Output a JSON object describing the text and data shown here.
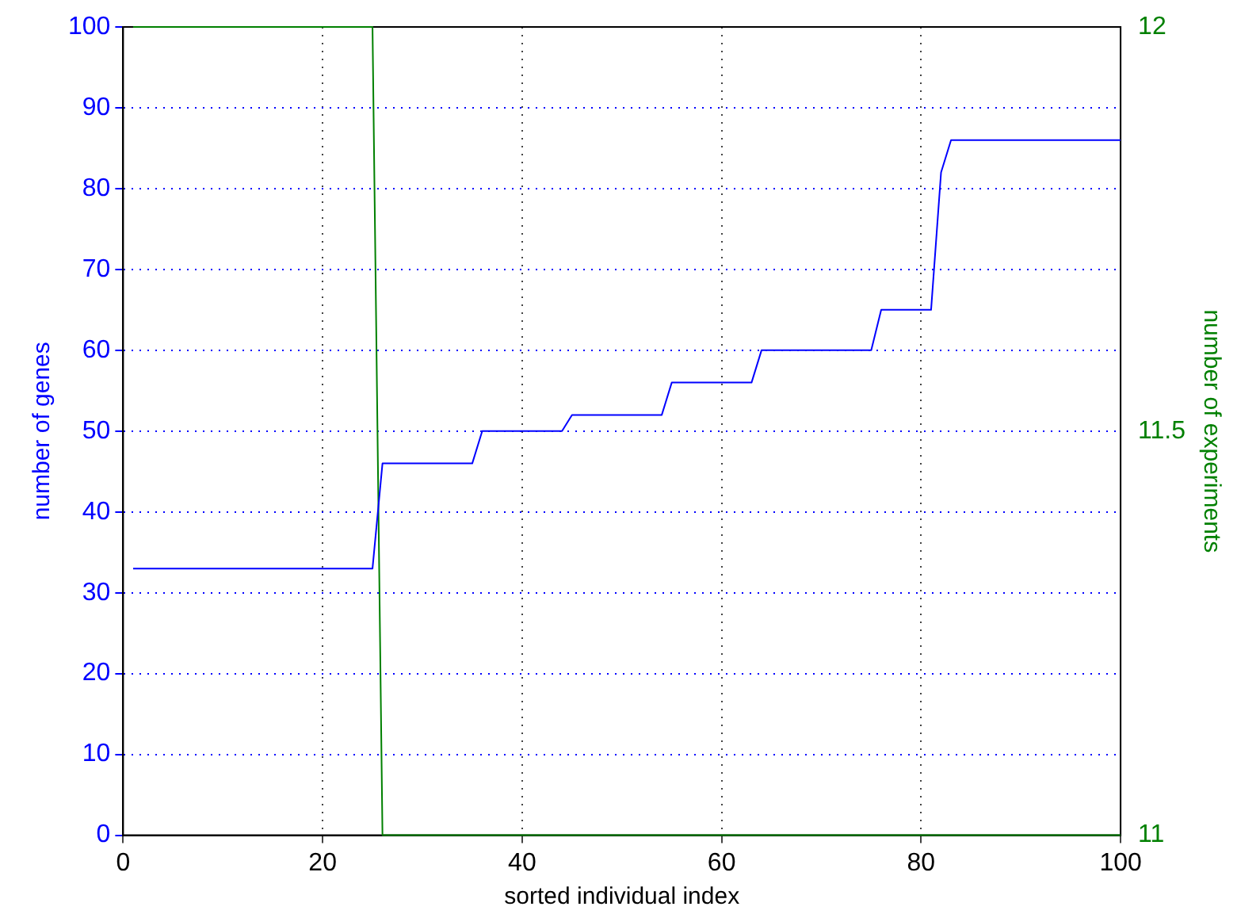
{
  "chart_data": {
    "type": "line",
    "xlabel": "sorted individual index",
    "ylabel": "number of genes",
    "y2label": "number of experiments",
    "xlim": [
      0,
      100
    ],
    "xticks": [
      0,
      20,
      40,
      60,
      80,
      100
    ],
    "ylim": [
      0,
      100
    ],
    "yticks": [
      0,
      10,
      20,
      30,
      40,
      50,
      60,
      70,
      80,
      90,
      100
    ],
    "y2lim": [
      11,
      12
    ],
    "y2ticks": [
      11,
      11.5,
      12
    ],
    "grid": true,
    "legend": false,
    "line_style": "solid",
    "marker": "none",
    "series": [
      {
        "color": "#0000ff",
        "x": [
          1,
          25,
          26,
          35,
          36,
          44,
          45,
          54,
          55,
          63,
          64,
          75,
          76,
          81,
          82,
          83,
          100
        ],
        "values": [
          33,
          33,
          46,
          46,
          50,
          50,
          52,
          52,
          56,
          56,
          60,
          60,
          65,
          65,
          82,
          86,
          86
        ]
      },
      {
        "color": "#008000",
        "axis": "y2",
        "x": [
          1,
          25,
          26,
          100
        ],
        "values": [
          12,
          12,
          11,
          11
        ]
      }
    ]
  }
}
